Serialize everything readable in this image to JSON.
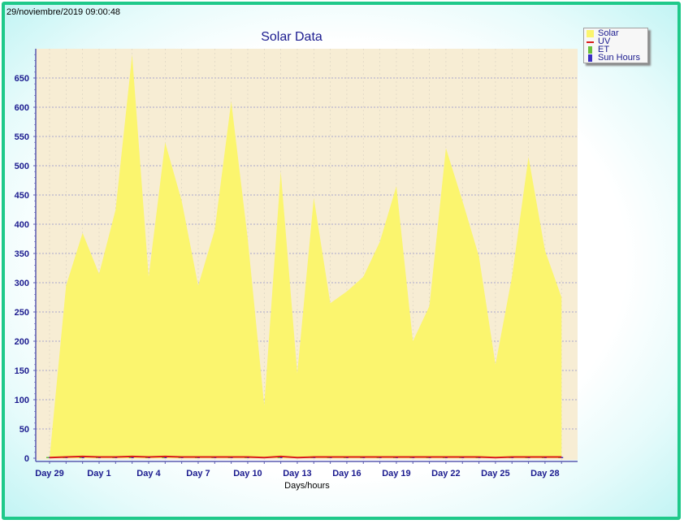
{
  "timestamp": "29/noviembre/2019 09:00:48",
  "colors": {
    "frame_border": "#1fc98a",
    "plot_background": "#f7edd4",
    "solar_fill": "#fbf56e",
    "uv_line": "#d81b1b",
    "et_bar": "#6cc13a",
    "sun_hours_bar": "#3b2fc4",
    "axis_text": "#1b1b8f"
  },
  "legend": {
    "items": [
      {
        "label": "Solar",
        "color": "#fbf56e",
        "icon": "filled-square"
      },
      {
        "label": "UV",
        "color": "#d81b1b",
        "icon": "line"
      },
      {
        "label": "ET",
        "color": "#6cc13a",
        "icon": "bar"
      },
      {
        "label": "Sun Hours",
        "color": "#3b2fc4",
        "icon": "bar"
      }
    ]
  },
  "chart_data": {
    "type": "area",
    "title": "Solar Data",
    "xlabel": "Days/hours",
    "ylabel": "",
    "ylim": [
      0,
      700
    ],
    "xlim": [
      -1,
      31
    ],
    "yticks": [
      0,
      50,
      100,
      150,
      200,
      250,
      300,
      350,
      400,
      450,
      500,
      550,
      600,
      650
    ],
    "xticks": [
      {
        "x": 0,
        "label": "Day 29"
      },
      {
        "x": 3,
        "label": "Day 1"
      },
      {
        "x": 6,
        "label": "Day 4"
      },
      {
        "x": 9,
        "label": "Day 7"
      },
      {
        "x": 12,
        "label": "Day 10"
      },
      {
        "x": 15,
        "label": "Day 13"
      },
      {
        "x": 18,
        "label": "Day 16"
      },
      {
        "x": 21,
        "label": "Day 19"
      },
      {
        "x": 24,
        "label": "Day 22"
      },
      {
        "x": 27,
        "label": "Day 25"
      },
      {
        "x": 30,
        "label": "Day 28"
      }
    ],
    "grid": true,
    "legend_position": "top-right",
    "x": [
      0,
      1,
      2,
      3,
      4,
      5,
      6,
      7,
      8,
      9,
      10,
      11,
      12,
      13,
      14,
      15,
      16,
      17,
      18,
      19,
      20,
      21,
      22,
      23,
      24,
      25,
      26,
      27,
      28,
      29,
      30,
      31
    ],
    "series": [
      {
        "name": "Solar",
        "kind": "area",
        "values": [
          0,
          295,
          385,
          315,
          425,
          690,
          310,
          540,
          440,
          295,
          390,
          610,
          375,
          90,
          490,
          145,
          445,
          265,
          285,
          310,
          370,
          465,
          200,
          260,
          530,
          440,
          345,
          160,
          310,
          515,
          355,
          275
        ]
      },
      {
        "name": "UV",
        "kind": "line",
        "values": [
          1,
          2,
          3,
          2,
          2,
          3,
          2,
          3,
          2,
          2,
          2,
          2,
          2,
          1,
          3,
          1,
          2,
          2,
          2,
          2,
          2,
          2,
          2,
          2,
          2,
          2,
          2,
          1,
          2,
          2,
          2,
          2
        ]
      },
      {
        "name": "ET",
        "kind": "bar",
        "values": [
          2,
          2,
          3,
          2,
          2,
          3,
          2,
          3,
          2,
          2,
          2,
          3,
          2,
          1,
          3,
          1,
          2,
          2,
          2,
          2,
          2,
          2,
          1,
          2,
          3,
          2,
          2,
          1,
          2,
          3,
          2,
          2
        ]
      },
      {
        "name": "Sun Hours",
        "kind": "bar",
        "values": [
          1,
          2,
          2,
          2,
          2,
          2,
          2,
          2,
          2,
          1,
          2,
          2,
          2,
          1,
          2,
          1,
          2,
          2,
          2,
          2,
          2,
          2,
          1,
          2,
          2,
          2,
          2,
          1,
          2,
          2,
          2,
          2
        ]
      }
    ]
  }
}
